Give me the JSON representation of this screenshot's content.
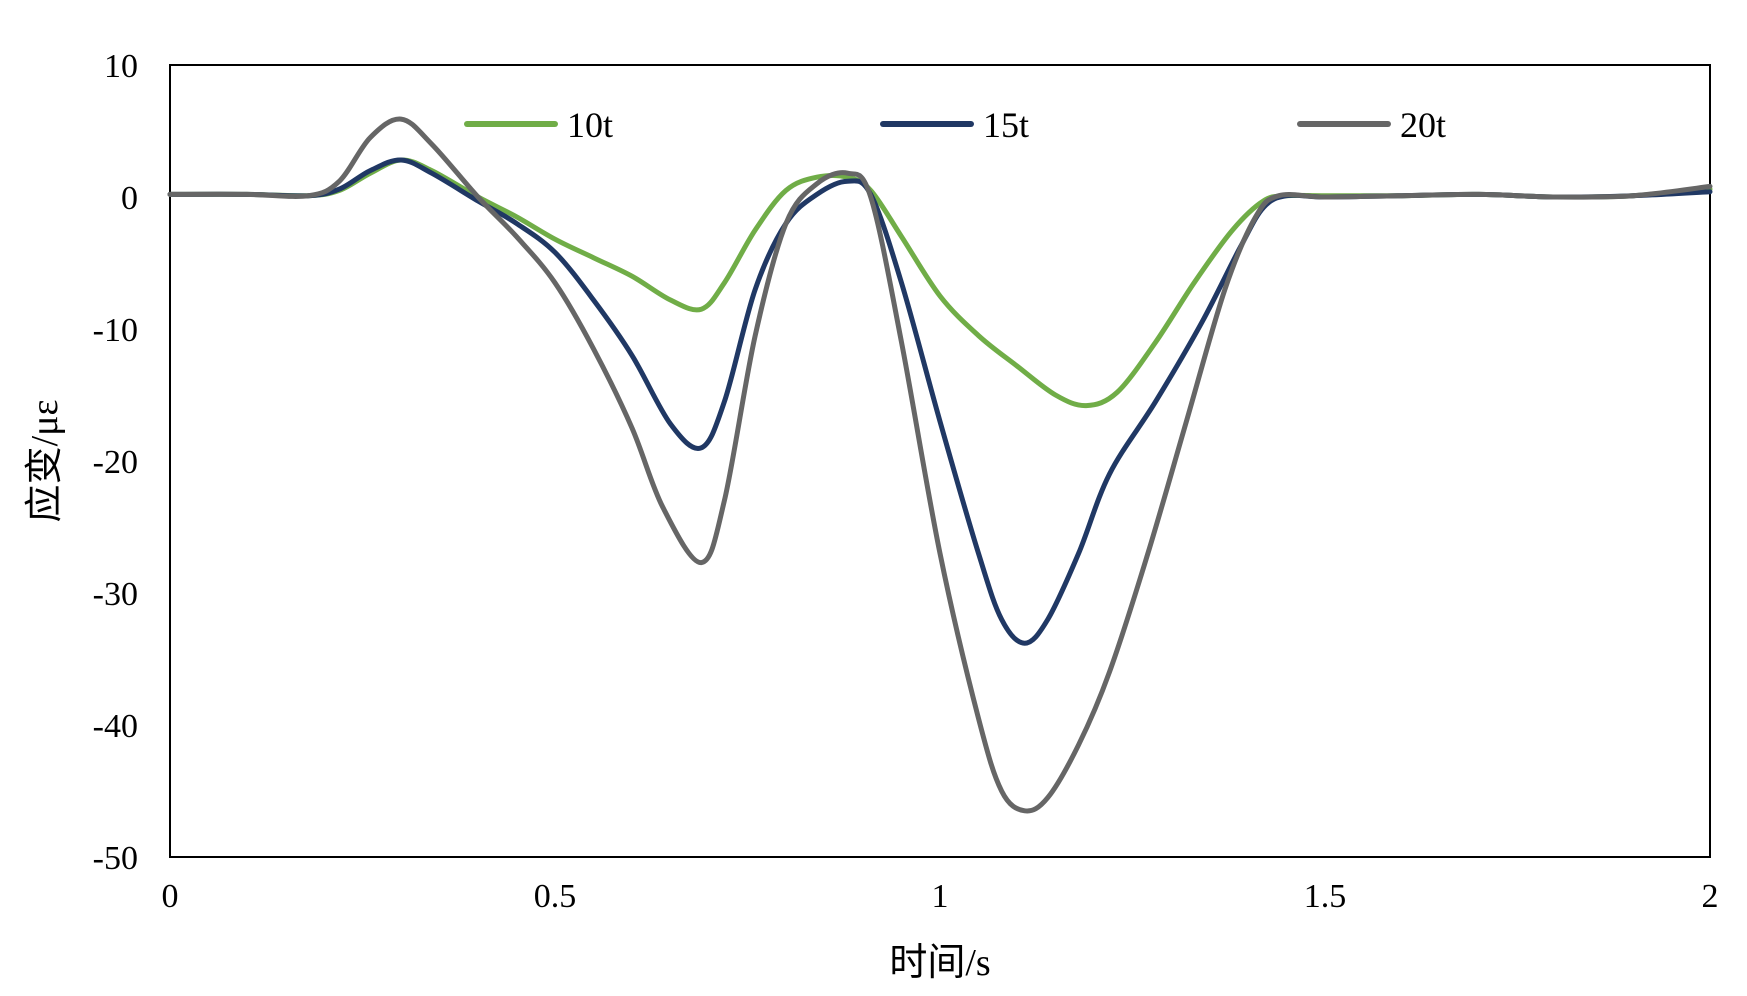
{
  "chart_data": {
    "type": "line",
    "title": "",
    "xlabel": "时间/s",
    "ylabel": "应变/με",
    "xlim": [
      0,
      2
    ],
    "ylim": [
      -50,
      10
    ],
    "xticks": [
      0,
      0.5,
      1,
      1.5,
      2
    ],
    "xtick_labels": [
      "0",
      "0.5",
      "1",
      "1.5",
      "2"
    ],
    "yticks": [
      10,
      0,
      -10,
      -20,
      -30,
      -40,
      -50
    ],
    "ytick_labels": [
      "10",
      "0",
      "-10",
      "-20",
      "-30",
      "-40",
      "-50"
    ],
    "grid": false,
    "legend_position": "top",
    "series": [
      {
        "name": "10t",
        "color": "#70AD47",
        "x": [
          0,
          0.1,
          0.18,
          0.22,
          0.26,
          0.3,
          0.34,
          0.4,
          0.45,
          0.5,
          0.55,
          0.6,
          0.65,
          0.69,
          0.72,
          0.76,
          0.8,
          0.84,
          0.88,
          0.91,
          0.95,
          1.0,
          1.05,
          1.1,
          1.15,
          1.19,
          1.23,
          1.28,
          1.33,
          1.38,
          1.42,
          1.45,
          1.5,
          1.6,
          1.7,
          1.8,
          1.9,
          2.0
        ],
        "values": [
          0.2,
          0.2,
          0.1,
          0.5,
          1.8,
          2.8,
          2.0,
          0,
          -1.5,
          -3.2,
          -4.6,
          -6.0,
          -7.8,
          -8.5,
          -6.5,
          -2.5,
          0.5,
          1.5,
          1.5,
          0.5,
          -3.0,
          -7.5,
          -10.5,
          -12.8,
          -15.0,
          -15.8,
          -14.8,
          -11.0,
          -6.5,
          -2.5,
          -0.3,
          0.1,
          0.1,
          0.1,
          0.2,
          0.0,
          0.1,
          0.6
        ]
      },
      {
        "name": "15t",
        "color": "#203864",
        "x": [
          0,
          0.1,
          0.18,
          0.22,
          0.26,
          0.3,
          0.34,
          0.4,
          0.45,
          0.5,
          0.55,
          0.6,
          0.65,
          0.69,
          0.72,
          0.76,
          0.8,
          0.84,
          0.88,
          0.91,
          0.95,
          1.0,
          1.05,
          1.08,
          1.11,
          1.14,
          1.18,
          1.22,
          1.28,
          1.34,
          1.39,
          1.42,
          1.45,
          1.5,
          1.6,
          1.7,
          1.8,
          1.9,
          2.0
        ],
        "values": [
          0.2,
          0.2,
          0.1,
          0.6,
          2.0,
          2.8,
          1.8,
          -0.3,
          -2.0,
          -4.2,
          -7.8,
          -12.0,
          -17.2,
          -19.0,
          -15.5,
          -7.0,
          -2.0,
          0.2,
          1.2,
          0.2,
          -6.5,
          -17.0,
          -27.0,
          -32.0,
          -33.8,
          -32.0,
          -27.0,
          -21.0,
          -15.5,
          -9.5,
          -3.8,
          -0.8,
          0.1,
          0.0,
          0.1,
          0.2,
          0.0,
          0.1,
          0.4
        ]
      },
      {
        "name": "20t",
        "color": "#666666",
        "x": [
          0,
          0.1,
          0.18,
          0.22,
          0.26,
          0.3,
          0.34,
          0.4,
          0.45,
          0.5,
          0.55,
          0.6,
          0.64,
          0.69,
          0.72,
          0.76,
          0.8,
          0.84,
          0.88,
          0.91,
          0.95,
          1.0,
          1.05,
          1.08,
          1.11,
          1.14,
          1.18,
          1.22,
          1.27,
          1.32,
          1.37,
          1.41,
          1.44,
          1.5,
          1.6,
          1.7,
          1.8,
          1.9,
          2.0
        ],
        "values": [
          0.2,
          0.2,
          0.1,
          1.2,
          4.5,
          5.9,
          4.0,
          0.0,
          -3.0,
          -6.5,
          -11.5,
          -17.5,
          -23.5,
          -27.7,
          -23.0,
          -10.5,
          -2.0,
          1.0,
          1.8,
          0.0,
          -11.0,
          -27.0,
          -39.5,
          -45.0,
          -46.5,
          -45.5,
          -41.5,
          -36.0,
          -27.0,
          -17.0,
          -7.0,
          -1.5,
          0.1,
          0.0,
          0.1,
          0.2,
          0.0,
          0.1,
          0.8
        ]
      }
    ]
  }
}
